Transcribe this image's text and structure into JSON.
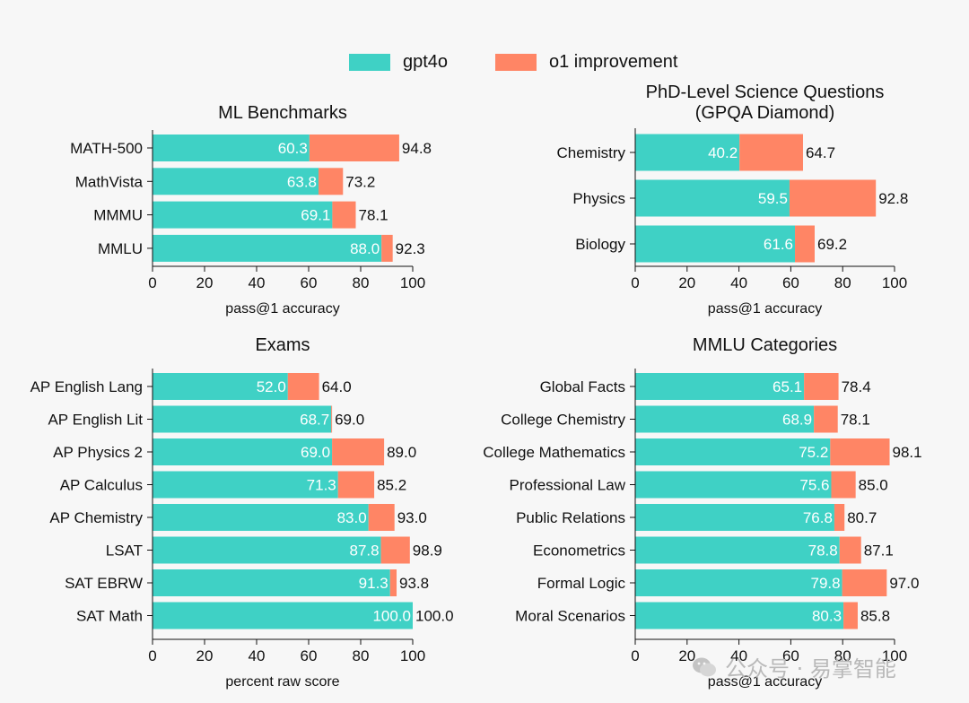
{
  "legend": {
    "gpt4o_label": "gpt4o",
    "o1_label": "o1 improvement"
  },
  "colors": {
    "gpt4o": "#3fd1c5",
    "o1": "#ff8565",
    "axis": "#111111",
    "background": "#f7f7f7"
  },
  "watermark": {
    "icon": "wechat-icon",
    "text": "公众号 · 易掌智能"
  },
  "chart_data": [
    {
      "id": "ml",
      "type": "bar",
      "orientation": "horizontal",
      "stacked": true,
      "title": "ML Benchmarks",
      "xlabel": "pass@1 accuracy",
      "xlim": [
        0,
        100
      ],
      "xticks": [
        0,
        20,
        40,
        60,
        80,
        100
      ],
      "categories": [
        "MATH-500",
        "MathVista",
        "MMMU",
        "MMLU"
      ],
      "series": [
        {
          "name": "gpt4o",
          "values": [
            60.3,
            63.8,
            69.1,
            88.0
          ],
          "labels": [
            "60.3",
            "63.8",
            "69.1",
            "88.0"
          ]
        },
        {
          "name": "o1",
          "totals": [
            94.8,
            73.2,
            78.1,
            92.3
          ],
          "labels": [
            "94.8",
            "73.2",
            "78.1",
            "92.3"
          ]
        }
      ]
    },
    {
      "id": "gpqa",
      "type": "bar",
      "orientation": "horizontal",
      "stacked": true,
      "title": "PhD-Level Science Questions",
      "subtitle": "(GPQA Diamond)",
      "xlabel": "pass@1 accuracy",
      "xlim": [
        0,
        100
      ],
      "xticks": [
        0,
        20,
        40,
        60,
        80,
        100
      ],
      "categories": [
        "Chemistry",
        "Physics",
        "Biology"
      ],
      "series": [
        {
          "name": "gpt4o",
          "values": [
            40.2,
            59.5,
            61.6
          ],
          "labels": [
            "40.2",
            "59.5",
            "61.6"
          ]
        },
        {
          "name": "o1",
          "totals": [
            64.7,
            92.8,
            69.2
          ],
          "labels": [
            "64.7",
            "92.8",
            "69.2"
          ]
        }
      ]
    },
    {
      "id": "exams",
      "type": "bar",
      "orientation": "horizontal",
      "stacked": true,
      "title": "Exams",
      "xlabel": "percent raw score",
      "xlim": [
        0,
        100
      ],
      "xticks": [
        0,
        20,
        40,
        60,
        80,
        100
      ],
      "categories": [
        "AP English Lang",
        "AP English Lit",
        "AP Physics 2",
        "AP Calculus",
        "AP Chemistry",
        "LSAT",
        "SAT EBRW",
        "SAT Math"
      ],
      "series": [
        {
          "name": "gpt4o",
          "values": [
            52.0,
            68.7,
            69.0,
            71.3,
            83.0,
            87.8,
            91.3,
            100.0
          ],
          "labels": [
            "52.0",
            "68.7",
            "69.0",
            "71.3",
            "83.0",
            "87.8",
            "91.3",
            "100.0"
          ]
        },
        {
          "name": "o1",
          "totals": [
            64.0,
            69.0,
            89.0,
            85.2,
            93.0,
            98.9,
            93.8,
            100.0
          ],
          "labels": [
            "64.0",
            "69.0",
            "89.0",
            "85.2",
            "93.0",
            "98.9",
            "93.8",
            "100.0"
          ]
        }
      ]
    },
    {
      "id": "mmlu",
      "type": "bar",
      "orientation": "horizontal",
      "stacked": true,
      "title": "MMLU Categories",
      "xlabel": "pass@1 accuracy",
      "xlim": [
        0,
        100
      ],
      "xticks": [
        0,
        20,
        40,
        60,
        80,
        100
      ],
      "categories": [
        "Global Facts",
        "College Chemistry",
        "College Mathematics",
        "Professional Law",
        "Public Relations",
        "Econometrics",
        "Formal Logic",
        "Moral Scenarios"
      ],
      "series": [
        {
          "name": "gpt4o",
          "values": [
            65.1,
            68.9,
            75.2,
            75.6,
            76.8,
            78.8,
            79.8,
            80.3
          ],
          "labels": [
            "65.1",
            "68.9",
            "75.2",
            "75.6",
            "76.8",
            "78.8",
            "79.8",
            "80.3"
          ]
        },
        {
          "name": "o1",
          "totals": [
            78.4,
            78.1,
            98.1,
            85.0,
            80.7,
            87.1,
            97.0,
            85.8
          ],
          "labels": [
            "78.4",
            "78.1",
            "98.1",
            "85.0",
            "80.7",
            "87.1",
            "97.0",
            "85.8"
          ]
        }
      ]
    }
  ]
}
